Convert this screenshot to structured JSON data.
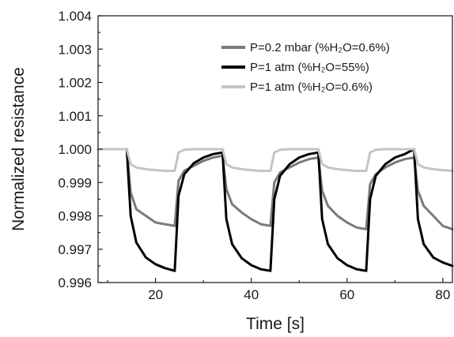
{
  "chart_data": {
    "type": "line",
    "title": "",
    "xlabel": "Time [s]",
    "ylabel": "Normalized resistance",
    "xlim": [
      8,
      82
    ],
    "ylim": [
      0.996,
      1.004
    ],
    "xticks": [
      20,
      40,
      60,
      80
    ],
    "xtick_labels": [
      "20",
      "40",
      "60",
      "80"
    ],
    "yticks": [
      0.996,
      0.997,
      0.998,
      0.999,
      1.0,
      1.001,
      1.002,
      1.003,
      1.004
    ],
    "ytick_labels": [
      "0.996",
      "0.997",
      "0.998",
      "0.999",
      "1.000",
      "1.001",
      "1.002",
      "1.003",
      "1.004"
    ],
    "grid": false,
    "legend_position": "top-right",
    "series": [
      {
        "name": "P=0.2 mbar (%H₂O=0.6%)",
        "color": "#7a7a7a",
        "x": [
          8,
          14,
          14.8,
          16,
          18,
          20,
          22,
          24,
          24.8,
          26,
          28,
          30,
          32,
          34,
          34.8,
          36,
          38,
          40,
          42,
          44,
          44.8,
          46,
          48,
          50,
          52,
          54,
          54.8,
          56,
          58,
          60,
          62,
          64,
          64.8,
          66,
          68,
          70,
          72,
          74,
          74.8,
          76,
          78,
          80,
          82
        ],
        "y": [
          1.0,
          1.0,
          0.9987,
          0.9982,
          0.998,
          0.9978,
          0.99775,
          0.9977,
          0.99905,
          0.99935,
          0.9995,
          0.99965,
          0.99975,
          0.9998,
          0.9988,
          0.99835,
          0.9981,
          0.9979,
          0.99775,
          0.9977,
          0.999,
          0.9993,
          0.99945,
          0.9996,
          0.9997,
          0.99975,
          0.99875,
          0.9983,
          0.998,
          0.9978,
          0.99765,
          0.9976,
          0.99895,
          0.99925,
          0.99945,
          0.9996,
          0.9997,
          0.99975,
          0.99875,
          0.9983,
          0.998,
          0.9977,
          0.9976
        ]
      },
      {
        "name": "P=1 atm (%H₂O=55%)",
        "color": "#000000",
        "x": [
          8,
          14,
          14.8,
          16,
          18,
          20,
          22,
          24,
          24.8,
          26,
          28,
          30,
          32,
          34,
          34.8,
          36,
          38,
          40,
          42,
          44,
          44.8,
          46,
          48,
          50,
          52,
          54,
          54.8,
          56,
          58,
          60,
          62,
          64,
          64.8,
          66,
          68,
          70,
          72,
          74,
          74.8,
          76,
          78,
          80,
          82
        ],
        "y": [
          1.0,
          1.0,
          0.998,
          0.9972,
          0.99675,
          0.99655,
          0.99643,
          0.99635,
          0.9986,
          0.99925,
          0.99958,
          0.99975,
          0.99985,
          0.9999,
          0.9979,
          0.99715,
          0.99673,
          0.99652,
          0.9964,
          0.99635,
          0.9985,
          0.9992,
          0.99955,
          0.99975,
          0.99985,
          0.9999,
          0.9979,
          0.99715,
          0.99673,
          0.99652,
          0.9964,
          0.99635,
          0.9985,
          0.9992,
          0.99955,
          0.99975,
          0.99985,
          1.0,
          0.9979,
          0.99715,
          0.99675,
          0.9966,
          0.9965
        ]
      },
      {
        "name": "P=1 atm (%H₂O=0.6%)",
        "color": "#c4c4c4",
        "x": [
          8,
          14,
          14.8,
          16,
          18,
          20,
          22,
          24,
          24.8,
          26,
          28,
          30,
          32,
          34,
          34.8,
          36,
          38,
          40,
          42,
          44,
          44.8,
          46,
          48,
          50,
          52,
          54,
          54.8,
          56,
          58,
          60,
          62,
          64,
          64.8,
          66,
          68,
          70,
          72,
          74,
          74.8,
          76,
          78,
          80,
          82
        ],
        "y": [
          1.0,
          1.0,
          0.99955,
          0.99945,
          0.9994,
          0.99937,
          0.99935,
          0.99935,
          0.9999,
          0.99998,
          1.0,
          1.0,
          1.0,
          1.0,
          0.99955,
          0.99945,
          0.9994,
          0.99937,
          0.99935,
          0.99935,
          0.9999,
          0.99998,
          1.0,
          1.0,
          1.0,
          1.0,
          0.99955,
          0.99945,
          0.9994,
          0.99937,
          0.99935,
          0.99935,
          0.9999,
          0.99998,
          1.0,
          1.0,
          1.0,
          1.0,
          0.99955,
          0.99945,
          0.9994,
          0.99937,
          0.99935
        ]
      }
    ]
  }
}
